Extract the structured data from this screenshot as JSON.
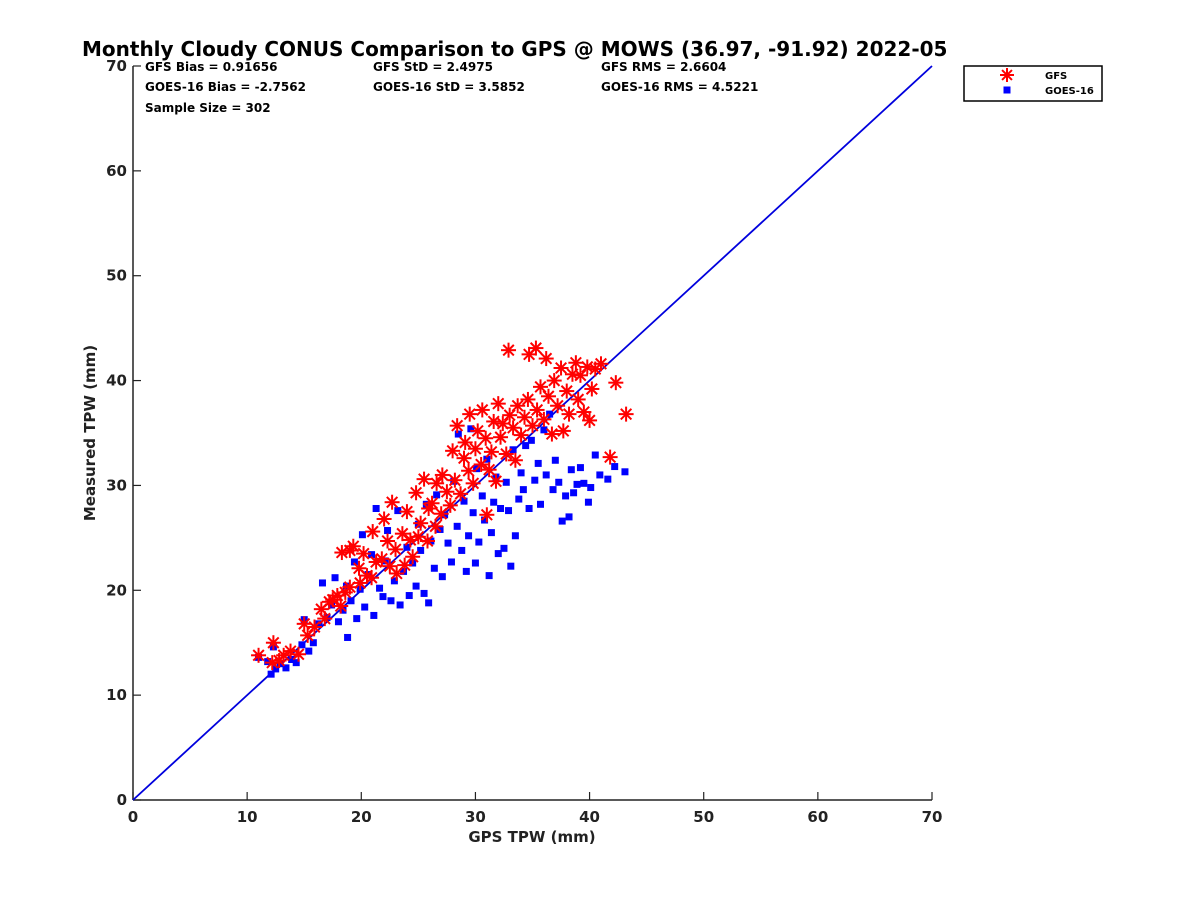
{
  "chart_data": {
    "type": "scatter",
    "title": "Monthly Cloudy CONUS Comparison to GPS @ MOWS (36.97, -91.92) 2022-05",
    "xlabel": "GPS TPW (mm)",
    "ylabel": "Measured TPW (mm)",
    "xlim": [
      0,
      70
    ],
    "ylim": [
      0,
      70
    ],
    "xticks": [
      0,
      10,
      20,
      30,
      40,
      50,
      60,
      70
    ],
    "yticks": [
      0,
      10,
      20,
      30,
      40,
      50,
      60,
      70
    ],
    "grid": false,
    "legend_position": "top-right, outside plot area",
    "stats": [
      [
        "GFS Bias = 0.91656",
        "GFS StD = 2.4975",
        "GFS RMS = 2.6604"
      ],
      [
        "GOES-16 Bias = -2.7562",
        "GOES-16 StD = 3.5852",
        "GOES-16 RMS = 4.5221"
      ],
      [
        "Sample Size = 302"
      ]
    ],
    "reference_line": {
      "x": [
        0,
        70
      ],
      "y": [
        0,
        70
      ],
      "color": "#0000dd"
    },
    "series": [
      {
        "name": "GFS",
        "marker": "asterisk",
        "color": "#ff0000",
        "points": [
          [
            11,
            13.8
          ],
          [
            12.2,
            13.1
          ],
          [
            12.3,
            15.0
          ],
          [
            12.8,
            13.3
          ],
          [
            13.2,
            13.8
          ],
          [
            13.8,
            14.2
          ],
          [
            14.5,
            13.9
          ],
          [
            15.0,
            16.8
          ],
          [
            15.3,
            15.7
          ],
          [
            15.9,
            16.5
          ],
          [
            16.5,
            18.2
          ],
          [
            16.8,
            17.3
          ],
          [
            17.2,
            18.9
          ],
          [
            17.5,
            19.1
          ],
          [
            17.9,
            19.5
          ],
          [
            18.2,
            18.5
          ],
          [
            18.3,
            23.6
          ],
          [
            18.6,
            19.8
          ],
          [
            19.0,
            20.3
          ],
          [
            19.0,
            23.8
          ],
          [
            19.3,
            24.2
          ],
          [
            19.8,
            22.1
          ],
          [
            19.9,
            20.7
          ],
          [
            20.2,
            23.5
          ],
          [
            20.5,
            21.4
          ],
          [
            20.9,
            21.2
          ],
          [
            21.0,
            25.6
          ],
          [
            21.3,
            22.7
          ],
          [
            21.8,
            23.0
          ],
          [
            22.0,
            26.8
          ],
          [
            22.3,
            24.7
          ],
          [
            22.5,
            22.3
          ],
          [
            22.7,
            28.4
          ],
          [
            23.0,
            23.9
          ],
          [
            23.1,
            21.6
          ],
          [
            23.6,
            25.4
          ],
          [
            23.8,
            22.4
          ],
          [
            24.0,
            27.5
          ],
          [
            24.3,
            24.8
          ],
          [
            24.5,
            23.2
          ],
          [
            24.8,
            29.3
          ],
          [
            25.0,
            25.1
          ],
          [
            25.2,
            26.4
          ],
          [
            25.5,
            30.6
          ],
          [
            25.8,
            24.7
          ],
          [
            25.9,
            27.8
          ],
          [
            26.2,
            28.3
          ],
          [
            26.5,
            26.1
          ],
          [
            26.6,
            30.2
          ],
          [
            27.0,
            27.3
          ],
          [
            27.1,
            31.0
          ],
          [
            27.5,
            29.4
          ],
          [
            27.8,
            28.1
          ],
          [
            28.0,
            33.3
          ],
          [
            28.2,
            30.5
          ],
          [
            28.4,
            35.7
          ],
          [
            28.7,
            29.2
          ],
          [
            29.0,
            32.6
          ],
          [
            29.1,
            34.1
          ],
          [
            29.4,
            31.4
          ],
          [
            29.5,
            36.8
          ],
          [
            29.8,
            30.2
          ],
          [
            30.0,
            33.5
          ],
          [
            30.2,
            35.2
          ],
          [
            30.5,
            32.0
          ],
          [
            30.6,
            37.2
          ],
          [
            30.9,
            34.5
          ],
          [
            31.0,
            27.2
          ],
          [
            31.2,
            31.5
          ],
          [
            31.4,
            33.2
          ],
          [
            31.6,
            36.1
          ],
          [
            31.8,
            30.4
          ],
          [
            32.0,
            37.8
          ],
          [
            32.2,
            34.6
          ],
          [
            32.4,
            35.9
          ],
          [
            32.7,
            33.0
          ],
          [
            32.9,
            42.9
          ],
          [
            33.0,
            36.7
          ],
          [
            33.3,
            35.5
          ],
          [
            33.5,
            32.4
          ],
          [
            33.7,
            37.6
          ],
          [
            34.0,
            34.8
          ],
          [
            34.3,
            36.5
          ],
          [
            34.6,
            38.2
          ],
          [
            34.7,
            42.5
          ],
          [
            35.0,
            35.7
          ],
          [
            35.3,
            43.1
          ],
          [
            35.4,
            37.2
          ],
          [
            35.7,
            39.4
          ],
          [
            36.0,
            36.3
          ],
          [
            36.2,
            42.1
          ],
          [
            36.4,
            38.5
          ],
          [
            36.7,
            34.9
          ],
          [
            36.9,
            40.0
          ],
          [
            37.2,
            37.6
          ],
          [
            37.5,
            41.2
          ],
          [
            37.7,
            35.2
          ],
          [
            38.0,
            39.0
          ],
          [
            38.2,
            36.8
          ],
          [
            38.5,
            40.6
          ],
          [
            38.8,
            41.7
          ],
          [
            39.0,
            38.2
          ],
          [
            39.2,
            40.5
          ],
          [
            39.5,
            37.0
          ],
          [
            39.8,
            41.3
          ],
          [
            40.0,
            36.2
          ],
          [
            40.2,
            39.2
          ],
          [
            40.5,
            41.1
          ],
          [
            41.0,
            41.6
          ],
          [
            41.8,
            32.7
          ],
          [
            42.3,
            39.8
          ],
          [
            43.2,
            36.8
          ]
        ]
      },
      {
        "name": "GOES-16",
        "marker": "square",
        "color": "#0000ff",
        "points": [
          [
            11,
            13.6
          ],
          [
            11.8,
            13.2
          ],
          [
            12.1,
            12.0
          ],
          [
            12.3,
            14.6
          ],
          [
            12.5,
            12.5
          ],
          [
            12.9,
            13.0
          ],
          [
            13.4,
            12.6
          ],
          [
            13.9,
            13.4
          ],
          [
            14.3,
            13.1
          ],
          [
            14.8,
            14.8
          ],
          [
            15.0,
            17.2
          ],
          [
            15.4,
            14.2
          ],
          [
            15.8,
            15.0
          ],
          [
            16.3,
            16.8
          ],
          [
            16.6,
            20.7
          ],
          [
            17.0,
            17.4
          ],
          [
            17.4,
            18.6
          ],
          [
            17.7,
            21.2
          ],
          [
            18.0,
            17.0
          ],
          [
            18.4,
            18.1
          ],
          [
            18.7,
            20.4
          ],
          [
            18.8,
            15.5
          ],
          [
            19.1,
            19.0
          ],
          [
            19.4,
            22.7
          ],
          [
            19.6,
            17.3
          ],
          [
            19.9,
            20.1
          ],
          [
            20.1,
            25.3
          ],
          [
            20.3,
            18.4
          ],
          [
            20.6,
            21.5
          ],
          [
            20.9,
            23.4
          ],
          [
            21.1,
            17.6
          ],
          [
            21.3,
            27.8
          ],
          [
            21.6,
            20.2
          ],
          [
            21.9,
            19.4
          ],
          [
            22.1,
            22.8
          ],
          [
            22.3,
            25.7
          ],
          [
            22.6,
            19.0
          ],
          [
            22.9,
            20.9
          ],
          [
            23.2,
            27.6
          ],
          [
            23.4,
            18.6
          ],
          [
            23.7,
            21.8
          ],
          [
            24.0,
            24.1
          ],
          [
            24.2,
            19.5
          ],
          [
            24.5,
            22.6
          ],
          [
            24.8,
            20.4
          ],
          [
            25.0,
            26.3
          ],
          [
            25.2,
            23.8
          ],
          [
            25.5,
            19.7
          ],
          [
            25.7,
            28.2
          ],
          [
            25.9,
            18.8
          ],
          [
            26.1,
            24.7
          ],
          [
            26.4,
            22.1
          ],
          [
            26.6,
            29.1
          ],
          [
            26.9,
            25.8
          ],
          [
            27.1,
            21.3
          ],
          [
            27.3,
            27.2
          ],
          [
            27.6,
            24.5
          ],
          [
            27.9,
            22.7
          ],
          [
            28.1,
            30.4
          ],
          [
            28.4,
            26.1
          ],
          [
            28.5,
            34.9
          ],
          [
            28.8,
            23.8
          ],
          [
            29.0,
            28.5
          ],
          [
            29.2,
            21.8
          ],
          [
            29.4,
            25.2
          ],
          [
            29.6,
            35.4
          ],
          [
            29.8,
            27.4
          ],
          [
            30.0,
            22.6
          ],
          [
            30.1,
            31.6
          ],
          [
            30.3,
            24.6
          ],
          [
            30.6,
            29.0
          ],
          [
            30.8,
            26.7
          ],
          [
            31.0,
            32.5
          ],
          [
            31.2,
            21.4
          ],
          [
            31.4,
            25.5
          ],
          [
            31.6,
            28.4
          ],
          [
            31.8,
            30.8
          ],
          [
            32.0,
            23.5
          ],
          [
            32.2,
            27.8
          ],
          [
            32.5,
            24.0
          ],
          [
            32.7,
            30.3
          ],
          [
            32.9,
            27.6
          ],
          [
            33.1,
            22.3
          ],
          [
            33.3,
            33.4
          ],
          [
            33.5,
            25.2
          ],
          [
            33.8,
            28.7
          ],
          [
            34.0,
            31.2
          ],
          [
            34.2,
            29.6
          ],
          [
            34.4,
            33.8
          ],
          [
            34.7,
            27.8
          ],
          [
            34.9,
            34.3
          ],
          [
            35.2,
            30.5
          ],
          [
            35.5,
            32.1
          ],
          [
            35.7,
            28.2
          ],
          [
            36.0,
            35.3
          ],
          [
            36.2,
            31.0
          ],
          [
            36.5,
            36.8
          ],
          [
            36.8,
            29.6
          ],
          [
            37.0,
            32.4
          ],
          [
            37.3,
            30.3
          ],
          [
            37.6,
            26.6
          ],
          [
            37.9,
            29.0
          ],
          [
            38.2,
            27.0
          ],
          [
            38.4,
            31.5
          ],
          [
            38.6,
            29.3
          ],
          [
            38.9,
            30.1
          ],
          [
            39.2,
            31.7
          ],
          [
            39.5,
            30.2
          ],
          [
            39.9,
            28.4
          ],
          [
            40.1,
            29.8
          ],
          [
            40.5,
            32.9
          ],
          [
            40.9,
            31.0
          ],
          [
            41.6,
            30.6
          ],
          [
            42.2,
            31.8
          ],
          [
            43.1,
            31.3
          ]
        ]
      }
    ]
  }
}
